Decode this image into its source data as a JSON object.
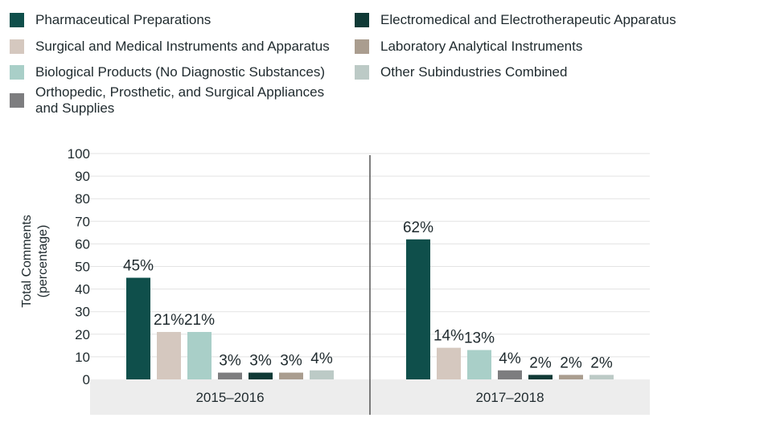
{
  "chart_data": {
    "type": "bar",
    "ylabel": "Total Comments\n(percentage)",
    "ylim": [
      0,
      100
    ],
    "yticks": [
      0,
      10,
      20,
      30,
      40,
      50,
      60,
      70,
      80,
      90,
      100
    ],
    "categories": [
      "2015–2016",
      "2017–2018"
    ],
    "series": [
      {
        "name": "Pharmaceutical Preparations",
        "color": "#0f4f4b",
        "values": [
          45,
          62
        ],
        "labels": [
          "45%",
          "62%"
        ]
      },
      {
        "name": "Surgical and Medical Instruments and Apparatus",
        "color": "#d5c8bf",
        "values": [
          21,
          14
        ],
        "labels": [
          "21%",
          "14%"
        ]
      },
      {
        "name": "Biological Products (No Diagnostic Substances)",
        "color": "#a9cfc8",
        "values": [
          21,
          13
        ],
        "labels": [
          "21%",
          "13%"
        ]
      },
      {
        "name": "Orthopedic, Prosthetic, and Surgical Appliances and Supplies",
        "color": "#7d7d7f",
        "values": [
          3,
          4
        ],
        "labels": [
          "3%",
          "4%"
        ]
      },
      {
        "name": "Electromedical and Electrotherapeutic Apparatus",
        "color": "#103a36",
        "values": [
          3,
          2
        ],
        "labels": [
          "3%",
          "2%"
        ]
      },
      {
        "name": "Laboratory Analytical Instruments",
        "color": "#aa9d8f",
        "values": [
          3,
          2
        ],
        "labels": [
          "3%",
          "2%"
        ]
      },
      {
        "name": "Other Subindustries Combined",
        "color": "#bccac6",
        "values": [
          4,
          2
        ],
        "labels": [
          "4%",
          "2%"
        ]
      }
    ],
    "grid": true,
    "legend_position": "top"
  }
}
